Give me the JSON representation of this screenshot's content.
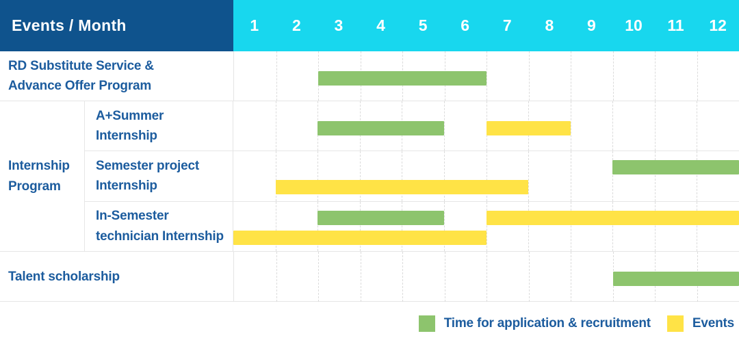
{
  "header": {
    "title": "Events / Month",
    "months": [
      "1",
      "2",
      "3",
      "4",
      "5",
      "6",
      "7",
      "8",
      "9",
      "10",
      "11",
      "12"
    ]
  },
  "colors": {
    "header_bg": "#0f538d",
    "months_bg": "#18d7ee",
    "green": "#8dc46d",
    "yellow": "#ffe346",
    "label_text": "#1c5c9e",
    "grid_line": "#e6e6e6"
  },
  "table": {
    "group_label": "Internship\nProgram",
    "rows": [
      {
        "label": "RD Substitute Service &\nAdvance Offer Program"
      },
      {
        "label": "A+Summer\nInternship"
      },
      {
        "label": "Semester project\nInternship"
      },
      {
        "label": "In-Semester\ntechnician Internship"
      },
      {
        "label": "Talent scholarship"
      }
    ]
  },
  "legend": {
    "items": [
      {
        "label": "Time for application & recruitment",
        "color": "green"
      },
      {
        "label": "Events",
        "color": "yellow"
      }
    ]
  },
  "chart_data": {
    "type": "bar",
    "subtype": "gantt",
    "x_categories": [
      "1",
      "2",
      "3",
      "4",
      "5",
      "6",
      "7",
      "8",
      "9",
      "10",
      "11",
      "12"
    ],
    "x_axis_label": "Month",
    "legend_position": "bottom-right",
    "series_legend": [
      "Time for application & recruitment",
      "Events"
    ],
    "rows": [
      {
        "group": null,
        "label": "RD Substitute Service & Advance Offer Program",
        "bars": [
          {
            "series": "Time for application & recruitment",
            "color": "green",
            "start": 3,
            "end": 6,
            "line": "single"
          }
        ]
      },
      {
        "group": "Internship Program",
        "label": "A+Summer Internship",
        "bars": [
          {
            "series": "Time for application & recruitment",
            "color": "green",
            "start": 3,
            "end": 5,
            "line": "single"
          },
          {
            "series": "Events",
            "color": "yellow",
            "start": 7,
            "end": 8,
            "line": "single"
          }
        ]
      },
      {
        "group": "Internship Program",
        "label": "Semester project Internship",
        "bars": [
          {
            "series": "Time for application & recruitment",
            "color": "green",
            "start": 10,
            "end": 12,
            "line": "top"
          },
          {
            "series": "Events",
            "color": "yellow",
            "start": 2,
            "end": 7,
            "line": "bottom"
          }
        ]
      },
      {
        "group": "Internship Program",
        "label": "In-Semester technician Internship",
        "bars": [
          {
            "series": "Time for application & recruitment",
            "color": "green",
            "start": 3,
            "end": 5,
            "line": "top"
          },
          {
            "series": "Events",
            "color": "yellow",
            "start": 7,
            "end": 12,
            "line": "top"
          },
          {
            "series": "Events",
            "color": "yellow",
            "start": 1,
            "end": 6,
            "line": "bottom"
          }
        ]
      },
      {
        "group": null,
        "label": "Talent scholarship",
        "bars": [
          {
            "series": "Time for application & recruitment",
            "color": "green",
            "start": 10,
            "end": 12,
            "line": "single"
          }
        ]
      }
    ]
  }
}
